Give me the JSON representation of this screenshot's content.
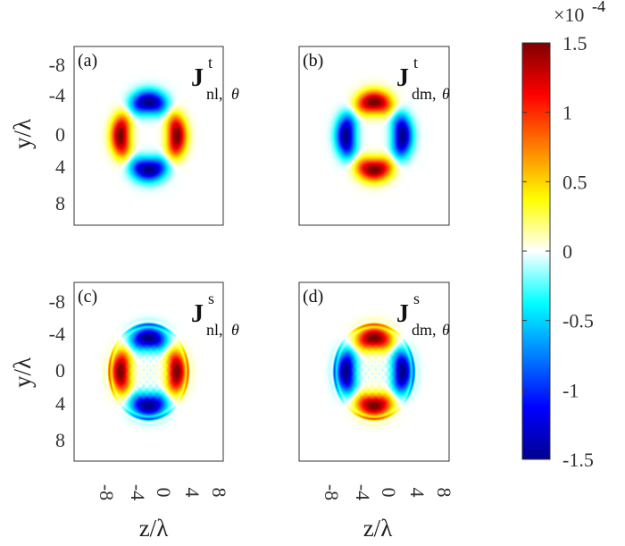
{
  "chart_data": [
    {
      "type": "heatmap",
      "panel_label": "(a)",
      "annotation": {
        "main": "J",
        "sup": "t",
        "sub": "nl,",
        "theta": "θ"
      },
      "pattern": "nl",
      "ring": false,
      "x_ticks": [
        "-8",
        "-4",
        "0",
        "4",
        "8"
      ],
      "y_ticks": [
        "-8",
        "-4",
        "0",
        "4",
        "8"
      ],
      "xlim": [
        -10,
        10
      ],
      "ylim": [
        -10,
        10
      ],
      "amplitude": 0.000145
    },
    {
      "type": "heatmap",
      "panel_label": "(b)",
      "annotation": {
        "main": "J",
        "sup": "t",
        "sub": "dm,",
        "theta": "θ"
      },
      "pattern": "dm",
      "ring": false,
      "x_ticks": [
        "-8",
        "-4",
        "0",
        "4",
        "8"
      ],
      "y_ticks": [
        "-8",
        "-4",
        "0",
        "4",
        "8"
      ],
      "xlim": [
        -10,
        10
      ],
      "ylim": [
        -10,
        10
      ],
      "amplitude": 0.000145
    },
    {
      "type": "heatmap",
      "panel_label": "(c)",
      "annotation": {
        "main": "J",
        "sup": "s",
        "sub": "nl,",
        "theta": "θ"
      },
      "pattern": "nl",
      "ring": true,
      "x_ticks": [
        "-8",
        "-4",
        "0",
        "4",
        "8"
      ],
      "y_ticks": [
        "-8",
        "-4",
        "0",
        "4",
        "8"
      ],
      "xlim": [
        -10,
        10
      ],
      "ylim": [
        -10,
        10
      ],
      "amplitude": 0.000145
    },
    {
      "type": "heatmap",
      "panel_label": "(d)",
      "annotation": {
        "main": "J",
        "sup": "s",
        "sub": "dm,",
        "theta": "θ"
      },
      "pattern": "dm",
      "ring": true,
      "x_ticks": [
        "-8",
        "-4",
        "0",
        "4",
        "8"
      ],
      "y_ticks": [
        "-8",
        "-4",
        "0",
        "4",
        "8"
      ],
      "xlim": [
        -10,
        10
      ],
      "ylim": [
        -10,
        10
      ],
      "amplitude": 0.000145
    }
  ],
  "axes": {
    "ylabel": "y/λ",
    "xlabel": "z/λ"
  },
  "colorbar": {
    "colormap": "jet",
    "range": [
      -1.5,
      1.5
    ],
    "ticks": [
      "1.5",
      "1",
      "0.5",
      "0",
      "-0.5",
      "-1",
      "-1.5"
    ],
    "tick_values": [
      1.5,
      1,
      0.5,
      0,
      -0.5,
      -1,
      -1.5
    ],
    "scale_label": "×10",
    "scale_exponent": "-4"
  }
}
